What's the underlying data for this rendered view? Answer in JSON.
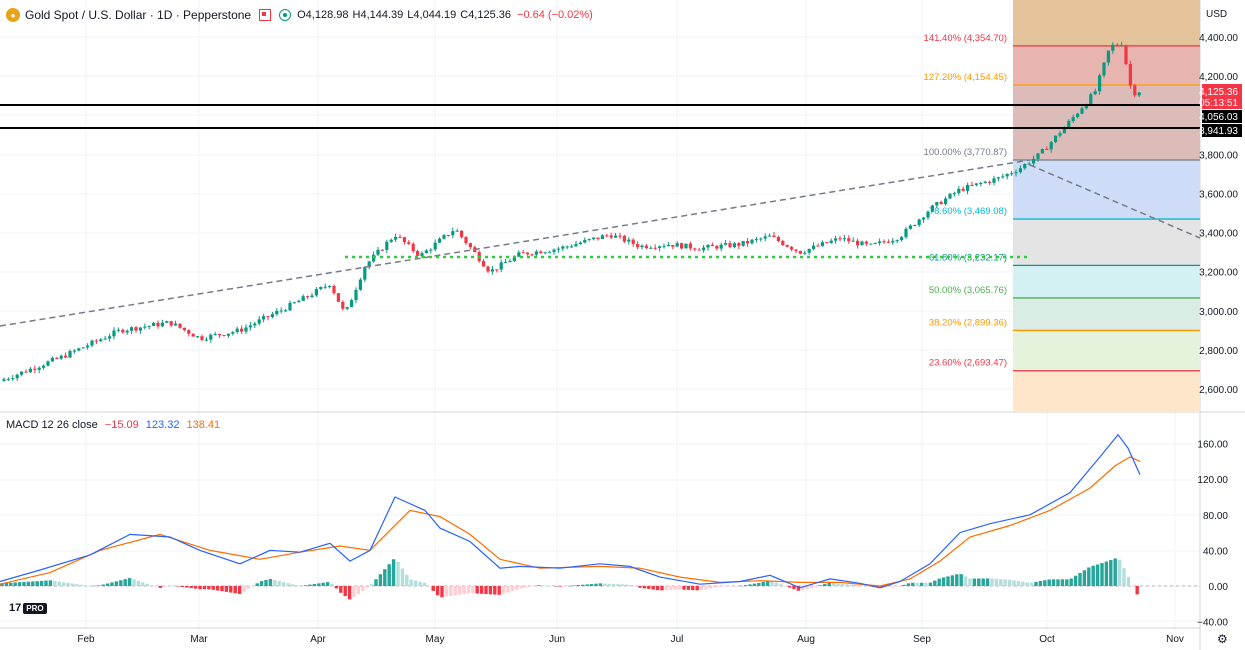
{
  "header": {
    "title": "Gold Spot / U.S. Dollar · 1D · Pepperstone",
    "open_label": "O",
    "open": "4,128.98",
    "high_label": "H",
    "high": "4,144.39",
    "low_label": "L",
    "low": "4,044.19",
    "close_label": "C",
    "close": "4,125.36",
    "change": "−0.64 (−0.02%)"
  },
  "currency": "USD",
  "macd": {
    "label": "MACD 12 26 close",
    "hist": "−15.09",
    "macd": "123.32",
    "signal": "138.41"
  },
  "brand": {
    "logo_text": "17",
    "pro_badge": "PRO"
  },
  "price_axis": {
    "ticks": [
      "4,400.00",
      "4,200.00",
      "3,800.00",
      "3,600.00",
      "3,400.00",
      "3,200.00",
      "3,000.00",
      "2,800.00",
      "2,600.00"
    ],
    "price_badge": {
      "price": "4,125.36",
      "countdown": "05:13:51",
      "color": "#f23645"
    },
    "line_badges": [
      "4,056.03",
      "3,941.93"
    ]
  },
  "macd_axis": {
    "ticks": [
      "160.00",
      "120.00",
      "80.00",
      "40.00",
      "0.00",
      "−40.00"
    ]
  },
  "time_axis": [
    "Feb",
    "Mar",
    "Apr",
    "May",
    "Jun",
    "Jul",
    "Aug",
    "Sep",
    "Oct",
    "Nov"
  ],
  "fib_levels": [
    {
      "label": "141.40% (4,354.70)",
      "price": 4354.7,
      "color": "#f23645",
      "fill": "#e8b4b0"
    },
    {
      "label": "127.20% (4,154.45)",
      "price": 4154.45,
      "color": "#ff9800",
      "fill": "#dcbcb8"
    },
    {
      "label": "100.00% (3,770.87)",
      "price": 3770.87,
      "color": "#787b86",
      "fill": "#cfdcf7"
    },
    {
      "label": "78.60% (3,469.08)",
      "price": 3469.08,
      "color": "#00bcd4",
      "fill": "#e4e4e4"
    },
    {
      "label": "61.80% (3,232.17)",
      "price": 3232.17,
      "color": "#089981",
      "fill": "#d3f1f3"
    },
    {
      "label": "50.00% (3,065.76)",
      "price": 3065.76,
      "color": "#4caf50",
      "fill": "#d9ede4"
    },
    {
      "label": "38.20% (2,899.36)",
      "price": 2899.36,
      "color": "#ff9800",
      "fill": "#e5f2dc"
    },
    {
      "label": "23.60% (2,693.47)",
      "price": 2693.47,
      "color": "#f23645",
      "fill": "#fde6c9"
    }
  ],
  "colors": {
    "up": "#089981",
    "down": "#f23645",
    "macd_line": "#2962ff",
    "signal_line": "#ff6d00"
  }
}
